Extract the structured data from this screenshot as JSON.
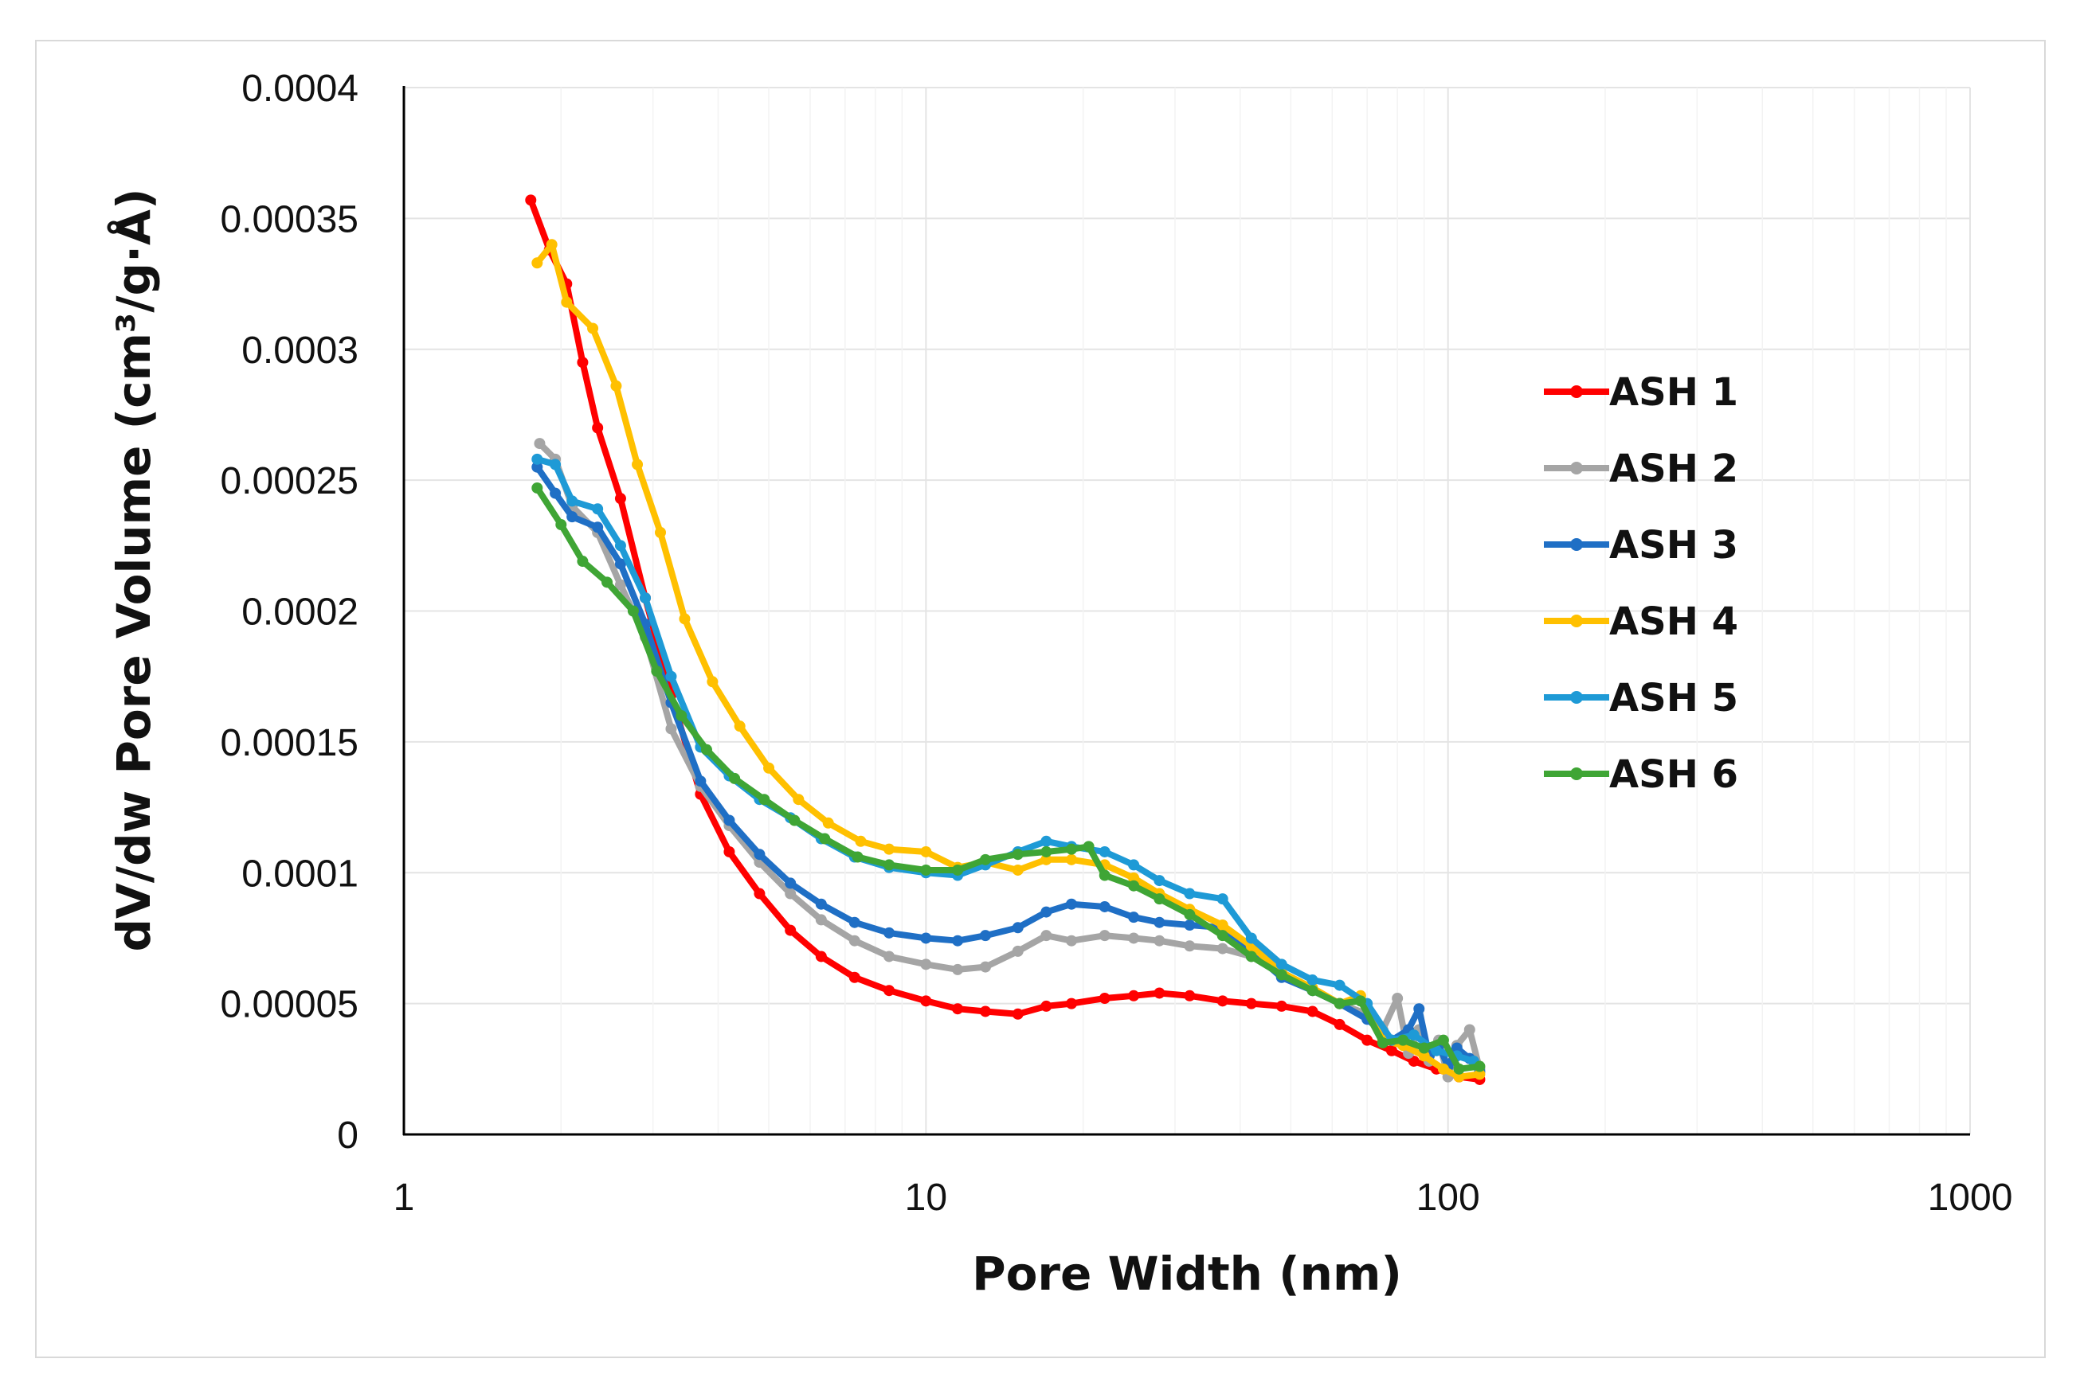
{
  "chart_data": {
    "type": "line",
    "xlabel": "Pore Width (nm)",
    "ylabel": "dV/dw Pore Volume (cm³/g·Å)",
    "x_scale": "log",
    "xlim": [
      1,
      1000
    ],
    "ylim": [
      0,
      0.0004
    ],
    "x_ticks": [
      1,
      10,
      100,
      1000
    ],
    "x_tick_labels": [
      "1",
      "10",
      "100",
      "1000"
    ],
    "y_ticks": [
      0,
      5e-05,
      0.0001,
      0.00015,
      0.0002,
      0.00025,
      0.0003,
      0.00035,
      0.0004
    ],
    "y_tick_labels": [
      "0",
      "0.00005",
      "0.0001",
      "0.00015",
      "0.0002",
      "0.00025",
      "0.0003",
      "0.00035",
      "0.0004"
    ],
    "grid": true,
    "legend_position": "right",
    "series": [
      {
        "name": "ASH 1",
        "color": "#ff0000",
        "x": [
          1.75,
          1.9,
          2.05,
          2.2,
          2.35,
          2.6,
          2.9,
          3.25,
          3.7,
          4.2,
          4.8,
          5.5,
          6.3,
          7.3,
          8.5,
          10,
          11.5,
          13,
          15,
          17,
          19,
          22,
          25,
          28,
          32,
          37,
          42,
          48,
          55,
          62,
          70,
          78,
          86,
          95,
          105,
          115
        ],
        "y": [
          0.000357,
          0.000338,
          0.000325,
          0.000295,
          0.00027,
          0.000243,
          0.000205,
          0.000168,
          0.00013,
          0.000108,
          9.2e-05,
          7.8e-05,
          6.8e-05,
          6e-05,
          5.5e-05,
          5.1e-05,
          4.8e-05,
          4.7e-05,
          4.6e-05,
          4.9e-05,
          5e-05,
          5.2e-05,
          5.3e-05,
          5.4e-05,
          5.3e-05,
          5.1e-05,
          5e-05,
          4.9e-05,
          4.7e-05,
          4.2e-05,
          3.6e-05,
          3.2e-05,
          2.8e-05,
          2.5e-05,
          2.2e-05,
          2.1e-05
        ]
      },
      {
        "name": "ASH 2",
        "color": "#a5a5a5",
        "x": [
          1.82,
          1.95,
          2.1,
          2.35,
          2.6,
          2.9,
          3.25,
          3.7,
          4.2,
          4.8,
          5.5,
          6.3,
          7.3,
          8.5,
          10,
          11.5,
          13,
          15,
          17,
          19,
          22,
          25,
          28,
          32,
          37,
          42,
          48,
          55,
          62,
          70,
          75,
          80,
          84,
          88,
          92,
          96,
          100,
          104,
          110,
          115
        ],
        "y": [
          0.000264,
          0.000258,
          0.00024,
          0.00023,
          0.00021,
          0.00019,
          0.000155,
          0.000133,
          0.000118,
          0.000104,
          9.2e-05,
          8.2e-05,
          7.4e-05,
          6.8e-05,
          6.5e-05,
          6.3e-05,
          6.4e-05,
          7e-05,
          7.6e-05,
          7.4e-05,
          7.6e-05,
          7.5e-05,
          7.4e-05,
          7.2e-05,
          7.1e-05,
          6.8e-05,
          6.2e-05,
          5.5e-05,
          5e-05,
          4.6e-05,
          4e-05,
          5.2e-05,
          3.1e-05,
          4e-05,
          2.8e-05,
          3.6e-05,
          2.2e-05,
          3.4e-05,
          4e-05,
          2.5e-05
        ]
      },
      {
        "name": "ASH 3",
        "color": "#1f6fc5",
        "x": [
          1.8,
          1.95,
          2.1,
          2.35,
          2.6,
          2.9,
          3.25,
          3.7,
          4.2,
          4.8,
          5.5,
          6.3,
          7.3,
          8.5,
          10,
          11.5,
          13,
          15,
          17,
          19,
          22,
          25,
          28,
          32,
          37,
          42,
          48,
          55,
          62,
          70,
          78,
          84,
          88,
          92,
          96,
          100,
          104,
          110,
          115
        ],
        "y": [
          0.000255,
          0.000245,
          0.000236,
          0.000232,
          0.000218,
          0.000195,
          0.000165,
          0.000135,
          0.00012,
          0.000107,
          9.6e-05,
          8.8e-05,
          8.1e-05,
          7.7e-05,
          7.5e-05,
          7.4e-05,
          7.6e-05,
          7.9e-05,
          8.5e-05,
          8.8e-05,
          8.7e-05,
          8.3e-05,
          8.1e-05,
          8e-05,
          7.9e-05,
          7e-05,
          6e-05,
          5.5e-05,
          5e-05,
          4.4e-05,
          3.6e-05,
          4e-05,
          4.8e-05,
          3e-05,
          3.4e-05,
          2.6e-05,
          3.3e-05,
          2.9e-05,
          2.4e-05
        ]
      },
      {
        "name": "ASH 4",
        "color": "#ffc000",
        "x": [
          1.8,
          1.92,
          2.05,
          2.3,
          2.55,
          2.8,
          3.1,
          3.45,
          3.9,
          4.4,
          5,
          5.7,
          6.5,
          7.5,
          8.5,
          10,
          11.5,
          13,
          15,
          17,
          19,
          22,
          25,
          28,
          32,
          37,
          42,
          48,
          55,
          62,
          68,
          75,
          82,
          90,
          98,
          105,
          115
        ],
        "y": [
          0.000333,
          0.00034,
          0.000318,
          0.000308,
          0.000286,
          0.000256,
          0.00023,
          0.000197,
          0.000173,
          0.000156,
          0.00014,
          0.000128,
          0.000119,
          0.000112,
          0.000109,
          0.000108,
          0.000102,
          0.000104,
          0.000101,
          0.000105,
          0.000105,
          0.000103,
          9.8e-05,
          9.2e-05,
          8.6e-05,
          8e-05,
          7.2e-05,
          6.2e-05,
          5.6e-05,
          5e-05,
          5.3e-05,
          3.6e-05,
          3.4e-05,
          3e-05,
          2.5e-05,
          2.2e-05,
          2.3e-05
        ]
      },
      {
        "name": "ASH 5",
        "color": "#1e9ad6",
        "x": [
          1.8,
          1.95,
          2.1,
          2.35,
          2.6,
          2.9,
          3.25,
          3.7,
          4.2,
          4.8,
          5.5,
          6.3,
          7.3,
          8.5,
          10,
          11.5,
          13,
          15,
          17,
          19,
          22,
          25,
          28,
          32,
          37,
          42,
          48,
          55,
          62,
          70,
          78,
          86,
          95,
          104,
          112
        ],
        "y": [
          0.000258,
          0.000256,
          0.000242,
          0.000239,
          0.000225,
          0.000205,
          0.000175,
          0.000148,
          0.000137,
          0.000128,
          0.000121,
          0.000113,
          0.000106,
          0.000102,
          0.0001,
          9.9e-05,
          0.000103,
          0.000108,
          0.000112,
          0.00011,
          0.000108,
          0.000103,
          9.7e-05,
          9.2e-05,
          9e-05,
          7.5e-05,
          6.5e-05,
          5.9e-05,
          5.7e-05,
          5e-05,
          3.6e-05,
          3.8e-05,
          3.2e-05,
          3e-05,
          2.8e-05
        ]
      },
      {
        "name": "ASH 6",
        "color": "#3fa535",
        "x": [
          1.8,
          2.0,
          2.2,
          2.45,
          2.75,
          3.05,
          3.4,
          3.8,
          4.3,
          4.9,
          5.6,
          6.4,
          7.4,
          8.5,
          10,
          11.5,
          13,
          15,
          17,
          19,
          20.5,
          22,
          25,
          28,
          32,
          37,
          42,
          48,
          55,
          62,
          68,
          75,
          82,
          90,
          98,
          105,
          115
        ],
        "y": [
          0.000247,
          0.000233,
          0.000219,
          0.000211,
          0.0002,
          0.000177,
          0.00016,
          0.000147,
          0.000136,
          0.000128,
          0.00012,
          0.000113,
          0.000106,
          0.000103,
          0.000101,
          0.000101,
          0.000105,
          0.000107,
          0.000108,
          0.000109,
          0.00011,
          9.9e-05,
          9.5e-05,
          9e-05,
          8.4e-05,
          7.6e-05,
          6.8e-05,
          6.1e-05,
          5.5e-05,
          5e-05,
          5.1e-05,
          3.5e-05,
          3.6e-05,
          3.3e-05,
          3.6e-05,
          2.5e-05,
          2.6e-05
        ]
      }
    ]
  }
}
